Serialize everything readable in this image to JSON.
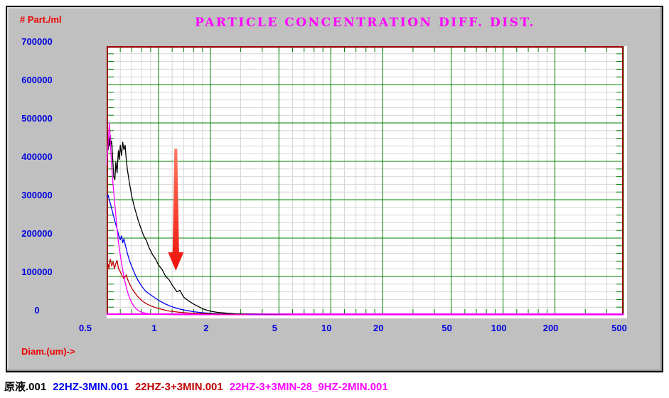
{
  "panel": {
    "background": "#c0c0c0",
    "border_color": "#000000"
  },
  "chart_data": {
    "type": "line",
    "title": "PARTICLE CONCENTRATION DIFF. DIST.",
    "title_color": "#ff00ff",
    "ylabel": "# Part./ml",
    "xlabel": "Diam.(um)->",
    "axis_title_color": "#ee0000",
    "tick_label_color": "#0000dd",
    "x_scale": "log",
    "xlim": [
      0.5,
      500
    ],
    "ylim": [
      0,
      700000
    ],
    "x_ticks": [
      [
        0.5,
        "0.5"
      ],
      [
        1,
        "1"
      ],
      [
        2,
        "2"
      ],
      [
        5,
        "5"
      ],
      [
        10,
        "10"
      ],
      [
        20,
        "20"
      ],
      [
        50,
        "50"
      ],
      [
        100,
        "100"
      ],
      [
        200,
        "200"
      ],
      [
        500,
        "500"
      ]
    ],
    "x_major_gridlines": [
      1,
      2,
      5,
      10,
      20,
      50,
      100,
      200,
      500
    ],
    "y_ticks": [
      [
        0,
        "0"
      ],
      [
        100000,
        "100000"
      ],
      [
        200000,
        "200000"
      ],
      [
        300000,
        "300000"
      ],
      [
        400000,
        "400000"
      ],
      [
        500000,
        "500000"
      ],
      [
        600000,
        "600000"
      ],
      [
        700000,
        "700000"
      ]
    ],
    "y_major_step": 100000,
    "y_minor_step": 20000,
    "grid": {
      "plot_bg": "#ffffff",
      "major_color": "#008000",
      "minor_color": "#d6d6d6",
      "border_top_left_right_color": "#990000",
      "border_bottom_color": "#ff00ff",
      "tick_color": "#008000"
    },
    "legend_position": "bottom-left",
    "series": [
      {
        "name": "原液.001",
        "color": "#000000",
        "points": [
          [
            0.51,
            430000
          ],
          [
            0.515,
            462000
          ],
          [
            0.52,
            440000
          ],
          [
            0.525,
            468000
          ],
          [
            0.53,
            445000
          ],
          [
            0.535,
            452000
          ],
          [
            0.54,
            420000
          ],
          [
            0.55,
            360000
          ],
          [
            0.558,
            352000
          ],
          [
            0.565,
            398000
          ],
          [
            0.575,
            370000
          ],
          [
            0.585,
            428000
          ],
          [
            0.592,
            405000
          ],
          [
            0.6,
            442000
          ],
          [
            0.61,
            415000
          ],
          [
            0.62,
            450000
          ],
          [
            0.63,
            430000
          ],
          [
            0.64,
            442000
          ],
          [
            0.65,
            405000
          ],
          [
            0.66,
            378000
          ],
          [
            0.68,
            340000
          ],
          [
            0.7,
            308000
          ],
          [
            0.73,
            276000
          ],
          [
            0.76,
            248000
          ],
          [
            0.79,
            226000
          ],
          [
            0.82,
            206000
          ],
          [
            0.85,
            194000
          ],
          [
            0.88,
            176000
          ],
          [
            0.92,
            158000
          ],
          [
            0.96,
            146000
          ],
          [
            1.0,
            130000
          ],
          [
            1.05,
            118000
          ],
          [
            1.1,
            100000
          ],
          [
            1.15,
            92000
          ],
          [
            1.2,
            78000
          ],
          [
            1.28,
            60000
          ],
          [
            1.33,
            64000
          ],
          [
            1.4,
            46000
          ],
          [
            1.5,
            36000
          ],
          [
            1.6,
            28000
          ],
          [
            1.7,
            22000
          ],
          [
            1.8,
            16000
          ],
          [
            1.9,
            12500
          ],
          [
            2.0,
            9500
          ],
          [
            2.2,
            6500
          ],
          [
            2.5,
            4200
          ],
          [
            2.8,
            2800
          ],
          [
            3.2,
            1800
          ],
          [
            3.7,
            1100
          ],
          [
            4.3,
            700
          ],
          [
            5.0,
            400
          ],
          [
            5.8,
            200
          ]
        ]
      },
      {
        "name": "22HZ-3MIN.001",
        "color": "#0000ee",
        "points": [
          [
            0.5,
            305000
          ],
          [
            0.51,
            312000
          ],
          [
            0.52,
            297000
          ],
          [
            0.53,
            284000
          ],
          [
            0.545,
            262000
          ],
          [
            0.56,
            242000
          ],
          [
            0.575,
            224000
          ],
          [
            0.59,
            205000
          ],
          [
            0.6,
            196000
          ],
          [
            0.61,
            206000
          ],
          [
            0.62,
            188000
          ],
          [
            0.63,
            198000
          ],
          [
            0.645,
            178000
          ],
          [
            0.66,
            160000
          ],
          [
            0.68,
            140000
          ],
          [
            0.7,
            126000
          ],
          [
            0.73,
            106000
          ],
          [
            0.76,
            90000
          ],
          [
            0.8,
            74000
          ],
          [
            0.84,
            62000
          ],
          [
            0.9,
            52000
          ],
          [
            1.0,
            38000
          ],
          [
            1.1,
            28000
          ],
          [
            1.2,
            21000
          ],
          [
            1.3,
            16000
          ],
          [
            1.45,
            11500
          ],
          [
            1.6,
            8200
          ],
          [
            1.8,
            5600
          ],
          [
            2.0,
            4000
          ],
          [
            2.3,
            2600
          ],
          [
            2.7,
            1500
          ],
          [
            3.1,
            900
          ],
          [
            3.6,
            500
          ],
          [
            4.2,
            250
          ]
        ]
      },
      {
        "name": "22HZ-3+3MIN.001",
        "color": "#c00000",
        "points": [
          [
            0.5,
            115000
          ],
          [
            0.51,
            132000
          ],
          [
            0.515,
            120000
          ],
          [
            0.525,
            145000
          ],
          [
            0.535,
            127000
          ],
          [
            0.545,
            138000
          ],
          [
            0.555,
            120000
          ],
          [
            0.565,
            134000
          ],
          [
            0.575,
            142000
          ],
          [
            0.585,
            122000
          ],
          [
            0.6,
            112000
          ],
          [
            0.615,
            102000
          ],
          [
            0.63,
            94000
          ],
          [
            0.65,
            104000
          ],
          [
            0.665,
            90000
          ],
          [
            0.68,
            80000
          ],
          [
            0.7,
            69000
          ],
          [
            0.73,
            57000
          ],
          [
            0.76,
            47000
          ],
          [
            0.8,
            37000
          ],
          [
            0.85,
            29000
          ],
          [
            0.9,
            23500
          ],
          [
            0.96,
            19000
          ],
          [
            1.05,
            14000
          ],
          [
            1.15,
            10000
          ],
          [
            1.3,
            7000
          ],
          [
            1.5,
            4800
          ],
          [
            1.7,
            3500
          ],
          [
            2.0,
            2500
          ],
          [
            2.4,
            1700
          ],
          [
            2.8,
            1100
          ],
          [
            3.3,
            600
          ]
        ]
      },
      {
        "name": "22HZ-3+3MIN-28_9HZ-2MIN.001",
        "color": "#ff00ff",
        "points": [
          [
            0.5,
            388000
          ],
          [
            0.505,
            420000
          ],
          [
            0.512,
            455000
          ],
          [
            0.518,
            500000
          ],
          [
            0.524,
            468000
          ],
          [
            0.53,
            418000
          ],
          [
            0.537,
            378000
          ],
          [
            0.545,
            338000
          ],
          [
            0.555,
            298000
          ],
          [
            0.565,
            260000
          ],
          [
            0.575,
            224000
          ],
          [
            0.585,
            190000
          ],
          [
            0.6,
            156000
          ],
          [
            0.615,
            126000
          ],
          [
            0.63,
            98000
          ],
          [
            0.65,
            72000
          ],
          [
            0.665,
            56000
          ],
          [
            0.685,
            40000
          ],
          [
            0.7,
            31000
          ],
          [
            0.73,
            19000
          ],
          [
            0.76,
            11500
          ],
          [
            0.8,
            6500
          ],
          [
            0.85,
            3800
          ],
          [
            0.92,
            2000
          ],
          [
            1.0,
            1100
          ],
          [
            1.2,
            500
          ],
          [
            1.5,
            250
          ],
          [
            2.0,
            100
          ],
          [
            5.0,
            0
          ],
          [
            500,
            0
          ]
        ]
      }
    ],
    "annotation_arrow": {
      "x_value": 1.26,
      "y_top": 433000,
      "y_tip": 115000,
      "color_top": "#ff7a66",
      "color_bottom": "#ee1108"
    }
  },
  "legend": {
    "items": [
      {
        "label": "原液.001",
        "color": "#000000"
      },
      {
        "label": "22HZ-3MIN.001",
        "color": "#0000ee"
      },
      {
        "label": "22HZ-3+3MIN.001",
        "color": "#c00000"
      },
      {
        "label": "22HZ-3+3MIN-28_9HZ-2MIN.001",
        "color": "#ff00ff"
      }
    ]
  }
}
